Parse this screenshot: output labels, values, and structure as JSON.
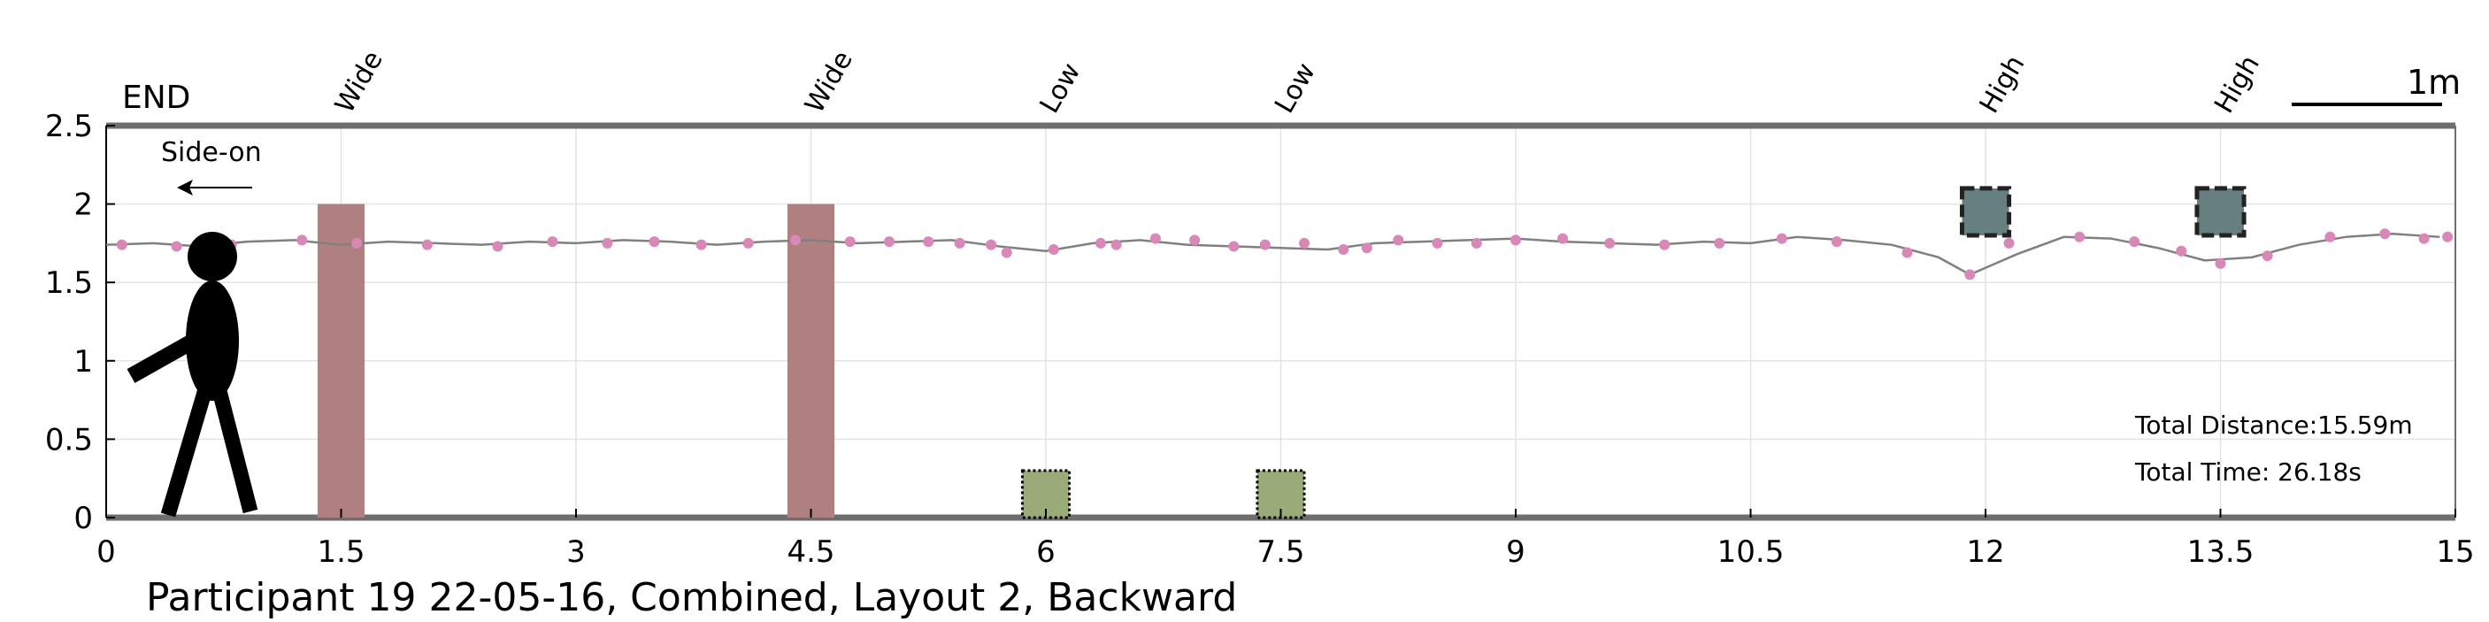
{
  "chart_data": {
    "type": "line",
    "xlim": [
      0,
      15
    ],
    "ylim": [
      0,
      2.5
    ],
    "x_ticks": [
      "0",
      "1.5",
      "3",
      "4.5",
      "6",
      "7.5",
      "9",
      "10.5",
      "12",
      "13.5",
      "15"
    ],
    "y_ticks": [
      "0",
      "0.5",
      "1",
      "1.5",
      "2",
      "2.5"
    ],
    "grid": true,
    "end_label": "END",
    "direction_label": "Side-on",
    "scale_label": "1m",
    "obstacle_labels": [
      {
        "label": "Wide",
        "x": 1.5
      },
      {
        "label": "Wide",
        "x": 4.5
      },
      {
        "label": "Low",
        "x": 6.0
      },
      {
        "label": "Low",
        "x": 7.5
      },
      {
        "label": "High",
        "x": 12.0
      },
      {
        "label": "High",
        "x": 13.5
      }
    ],
    "obstacles": [
      {
        "kind": "wide",
        "x0": 1.35,
        "x1": 1.65,
        "y0": 0,
        "y1": 2.0,
        "color": "#b07f7f"
      },
      {
        "kind": "wide",
        "x0": 4.35,
        "x1": 4.65,
        "y0": 0,
        "y1": 2.0,
        "color": "#b07f7f"
      },
      {
        "kind": "low",
        "x0": 5.85,
        "x1": 6.15,
        "y0": 0,
        "y1": 0.3,
        "color": "#9aab79"
      },
      {
        "kind": "low",
        "x0": 7.35,
        "x1": 7.65,
        "y0": 0,
        "y1": 0.3,
        "color": "#9aab79"
      },
      {
        "kind": "high",
        "x0": 11.85,
        "x1": 12.15,
        "y0": 1.8,
        "y1": 2.1,
        "color": "#67807f"
      },
      {
        "kind": "high",
        "x0": 13.35,
        "x1": 13.65,
        "y0": 1.8,
        "y1": 2.1,
        "color": "#67807f"
      }
    ],
    "path": {
      "x": [
        0.0,
        0.3,
        0.6,
        0.9,
        1.2,
        1.5,
        1.8,
        2.1,
        2.4,
        2.7,
        3.0,
        3.3,
        3.6,
        3.9,
        4.2,
        4.5,
        4.8,
        5.1,
        5.4,
        5.7,
        6.0,
        6.3,
        6.6,
        6.9,
        7.2,
        7.5,
        7.8,
        8.1,
        8.4,
        8.7,
        9.0,
        9.3,
        9.6,
        9.9,
        10.2,
        10.5,
        10.8,
        11.1,
        11.4,
        11.7,
        11.9,
        12.2,
        12.5,
        12.8,
        13.1,
        13.4,
        13.7,
        14.0,
        14.3,
        14.6,
        14.9
      ],
      "y": [
        1.74,
        1.75,
        1.73,
        1.76,
        1.77,
        1.74,
        1.76,
        1.75,
        1.74,
        1.76,
        1.75,
        1.77,
        1.76,
        1.74,
        1.76,
        1.77,
        1.75,
        1.76,
        1.77,
        1.73,
        1.7,
        1.75,
        1.77,
        1.74,
        1.73,
        1.72,
        1.71,
        1.75,
        1.76,
        1.77,
        1.78,
        1.76,
        1.75,
        1.74,
        1.76,
        1.75,
        1.79,
        1.77,
        1.74,
        1.66,
        1.55,
        1.68,
        1.79,
        1.78,
        1.72,
        1.64,
        1.66,
        1.74,
        1.79,
        1.81,
        1.79
      ]
    },
    "markers": {
      "x": [
        0.1,
        0.45,
        0.8,
        1.25,
        1.6,
        2.05,
        2.5,
        2.85,
        3.2,
        3.5,
        3.8,
        4.1,
        4.4,
        4.75,
        5.0,
        5.25,
        5.45,
        5.65,
        5.75,
        6.05,
        6.35,
        6.45,
        6.7,
        6.95,
        7.2,
        7.4,
        7.65,
        7.9,
        8.05,
        8.25,
        8.5,
        8.75,
        9.0,
        9.3,
        9.6,
        9.95,
        10.3,
        10.7,
        11.05,
        11.5,
        11.9,
        12.15,
        12.6,
        12.95,
        13.25,
        13.5,
        13.8,
        14.2,
        14.55,
        14.8,
        14.95
      ],
      "y": [
        1.74,
        1.73,
        1.74,
        1.77,
        1.75,
        1.74,
        1.73,
        1.76,
        1.75,
        1.76,
        1.74,
        1.75,
        1.77,
        1.76,
        1.76,
        1.76,
        1.75,
        1.74,
        1.69,
        1.71,
        1.75,
        1.74,
        1.78,
        1.77,
        1.73,
        1.74,
        1.75,
        1.71,
        1.72,
        1.77,
        1.75,
        1.75,
        1.77,
        1.78,
        1.75,
        1.74,
        1.75,
        1.78,
        1.76,
        1.69,
        1.55,
        1.75,
        1.79,
        1.76,
        1.7,
        1.62,
        1.67,
        1.79,
        1.81,
        1.78,
        1.79
      ]
    },
    "line_color": "#808080",
    "marker_color": "#d987b7",
    "total_distance": "Total Distance:15.59m",
    "total_time": "Total Time: 26.18s",
    "caption": "Participant 19 22-05-16, Combined, Layout 2, Backward"
  }
}
